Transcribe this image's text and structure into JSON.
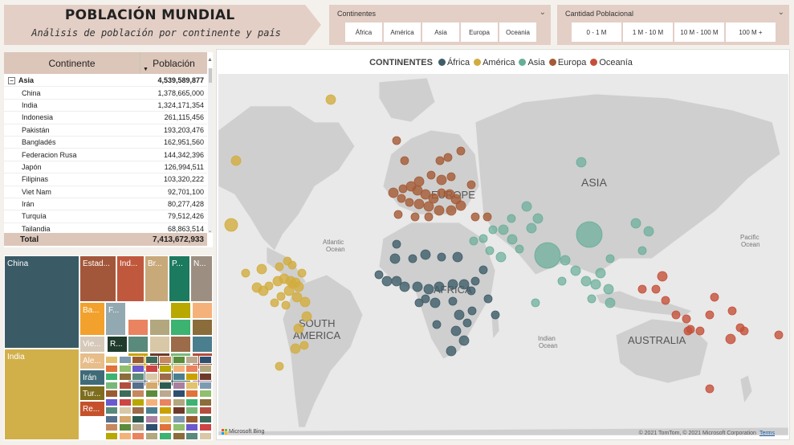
{
  "title": "POBLACIÓN MUNDIAL",
  "subtitle": "Análisis de población por continente y país",
  "slicers": {
    "continentes": {
      "title": "Continentes",
      "options": [
        "África",
        "América",
        "Asia",
        "Europa",
        "Oceania"
      ]
    },
    "cantidad": {
      "title": "Cantidad Poblacional",
      "options": [
        "0 - 1 M",
        "1 M - 10 M",
        "10 M - 100 M",
        "100 M +"
      ]
    }
  },
  "table": {
    "header": {
      "continente": "Continente",
      "poblacion": "Población"
    },
    "group": {
      "name": "Asia",
      "value": "4,539,589,877"
    },
    "rows": [
      {
        "name": "China",
        "value": "1,378,665,000"
      },
      {
        "name": "India",
        "value": "1,324,171,354"
      },
      {
        "name": "Indonesia",
        "value": "261,115,456"
      },
      {
        "name": "Pakistán",
        "value": "193,203,476"
      },
      {
        "name": "Bangladés",
        "value": "162,951,560"
      },
      {
        "name": "Federacion Rusa",
        "value": "144,342,396"
      },
      {
        "name": "Japón",
        "value": "126,994,511"
      },
      {
        "name": "Filipinas",
        "value": "103,320,222"
      },
      {
        "name": "Viet Nam",
        "value": "92,701,100"
      },
      {
        "name": "Irán",
        "value": "80,277,428"
      },
      {
        "name": "Turquía",
        "value": "79,512,426"
      },
      {
        "name": "Tailandia",
        "value": "68,863,514"
      }
    ],
    "total": {
      "label": "Total",
      "value": "7,413,672,933"
    }
  },
  "treemap": {
    "labels": {
      "china": "China",
      "india": "India",
      "usa": "Estad...",
      "ind": "Ind...",
      "br": "Br...",
      "p": "P...",
      "n": "N...",
      "ba": "Ba...",
      "f": "F...",
      "vie": "Vie...",
      "r": "R...",
      "ale": "Ale...",
      "iran": "Irán",
      "tur": "Tur...",
      "re": "Re..."
    },
    "colors": {
      "china": "#3a5a66",
      "india": "#d1b04a",
      "usa": "#a3573a",
      "ind": "#c0583d",
      "br": "#c8a97a",
      "p": "#1c7a5f",
      "n": "#9c8f82",
      "ba": "#f2a12c",
      "f": "#93a9b2",
      "vie": "#d6c9b9",
      "r": "#1f3b2c",
      "ale": "#e7bd8a",
      "iran": "#3f6b78",
      "tur": "#7d6d1d",
      "re": "#c5512c"
    }
  },
  "map": {
    "legend_title": "CONTINENTES",
    "legend": [
      {
        "name": "África",
        "color": "#3f5d68"
      },
      {
        "name": "América",
        "color": "#d2ac3f"
      },
      {
        "name": "Asia",
        "color": "#67ad98"
      },
      {
        "name": "Europa",
        "color": "#a45a34"
      },
      {
        "name": "Oceanía",
        "color": "#c4503a"
      }
    ],
    "labels": {
      "asia": "ASIA",
      "europe": "EUROPE",
      "africa": "AFRICA",
      "south_america_1": "SOUTH",
      "south_america_2": "AMERICA",
      "australia": "AUSTRALIA",
      "atlantic_1": "Atlantic",
      "atlantic_2": "Ocean",
      "indian_1": "Indian",
      "indian_2": "Ocean",
      "pacific_1": "Pacific",
      "pacific_2": "Ocean"
    },
    "attribution": "© 2021 TomTom, © 2021 Microsoft Corporation",
    "terms": "Terms",
    "bing": "Microsoft Bing"
  }
}
